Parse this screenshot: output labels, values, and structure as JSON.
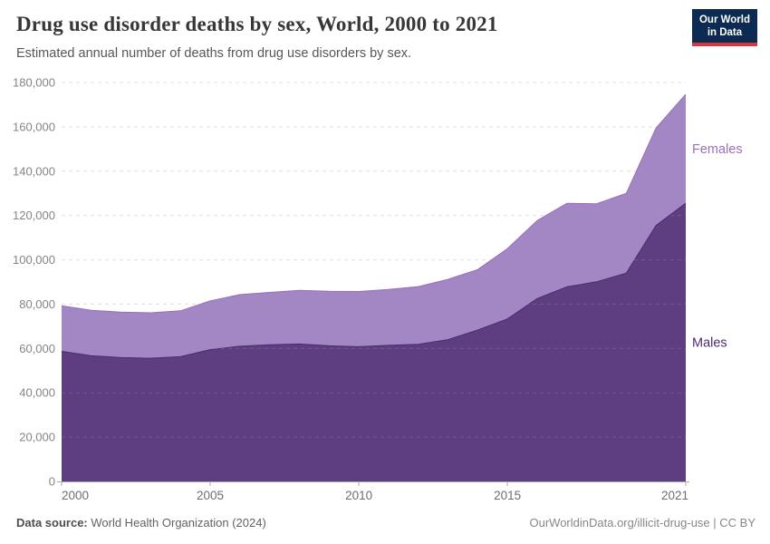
{
  "header": {
    "title": "Drug use disorder deaths by sex, World, 2000 to 2021",
    "subtitle": "Estimated annual number of deaths from drug use disorders by sex.",
    "logo": {
      "line1": "Our World",
      "line2": "in Data",
      "bg_color": "#0d2b52",
      "accent_color": "#d8373e"
    }
  },
  "chart_data": {
    "type": "area",
    "stacked": true,
    "title": "Drug use disorder deaths by sex, World, 2000 to 2021",
    "subtitle": "Estimated annual number of deaths from drug use disorders by sex.",
    "x": [
      2000,
      2001,
      2002,
      2003,
      2004,
      2005,
      2006,
      2007,
      2008,
      2009,
      2010,
      2011,
      2012,
      2013,
      2014,
      2015,
      2016,
      2017,
      2018,
      2019,
      2020,
      2021
    ],
    "series": [
      {
        "name": "Males",
        "color": "#4c2a70",
        "fill": "#5e3d80",
        "values": [
          58700,
          56700,
          55900,
          55600,
          56300,
          59500,
          61000,
          61700,
          62000,
          61200,
          60800,
          61400,
          61900,
          64000,
          68300,
          73300,
          82500,
          87800,
          90100,
          94000,
          115500,
          125500
        ]
      },
      {
        "name": "Females",
        "color": "#9a6fba",
        "fill": "#a287c4",
        "values": [
          20600,
          20500,
          20500,
          20500,
          20700,
          22000,
          23300,
          23600,
          24200,
          24600,
          24900,
          25200,
          26000,
          27200,
          27300,
          31700,
          35200,
          37700,
          35200,
          36000,
          44000,
          49200
        ]
      }
    ],
    "xlabel": "",
    "ylabel": "",
    "ylim": [
      0,
      180000
    ],
    "yticks": [
      0,
      20000,
      40000,
      60000,
      80000,
      100000,
      120000,
      140000,
      160000,
      180000
    ],
    "ytick_labels": [
      "0",
      "20,000",
      "40,000",
      "60,000",
      "80,000",
      "100,000",
      "120,000",
      "140,000",
      "160,000",
      "180,000"
    ],
    "xticks": [
      2000,
      2005,
      2010,
      2015,
      2021
    ],
    "xtick_labels": [
      "2000",
      "2005",
      "2010",
      "2015",
      "2021"
    ],
    "grid": "dashed-horizontal",
    "legend_position": "right-inline-labels",
    "axis_text_color": "#858585",
    "xaxis_text_color": "#6e6e6e",
    "gridline_color": "#9e9e9e",
    "baseline_color": "#a8a8a8"
  },
  "footer": {
    "datasource_label": "Data source:",
    "datasource_value": " World Health Organization (2024)",
    "attribution": "OurWorldinData.org/illicit-drug-use | CC BY"
  }
}
